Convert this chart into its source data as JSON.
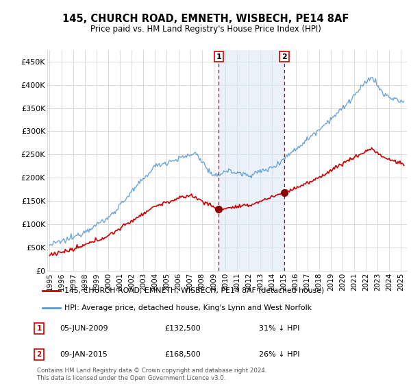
{
  "title": "145, CHURCH ROAD, EMNETH, WISBECH, PE14 8AF",
  "subtitle": "Price paid vs. HM Land Registry's House Price Index (HPI)",
  "ylabel_ticks": [
    "£0",
    "£50K",
    "£100K",
    "£150K",
    "£200K",
    "£250K",
    "£300K",
    "£350K",
    "£400K",
    "£450K"
  ],
  "ytick_vals": [
    0,
    50000,
    100000,
    150000,
    200000,
    250000,
    300000,
    350000,
    400000,
    450000
  ],
  "ylim": [
    0,
    475000
  ],
  "xlim_start": 1994.8,
  "xlim_end": 2025.5,
  "hpi_color": "#5b9bd5",
  "property_color": "#cc0000",
  "transaction1_x": 2009.43,
  "transaction1_y": 132500,
  "transaction2_x": 2015.03,
  "transaction2_y": 168500,
  "legend_property": "145, CHURCH ROAD, EMNETH, WISBECH, PE14 8AF (detached house)",
  "legend_hpi": "HPI: Average price, detached house, King's Lynn and West Norfolk",
  "footnote": "Contains HM Land Registry data © Crown copyright and database right 2024.\nThis data is licensed under the Open Government Licence v3.0.",
  "vline_color": "#cc0000",
  "shade_color": "#dce9f5",
  "shade_alpha": 0.6
}
